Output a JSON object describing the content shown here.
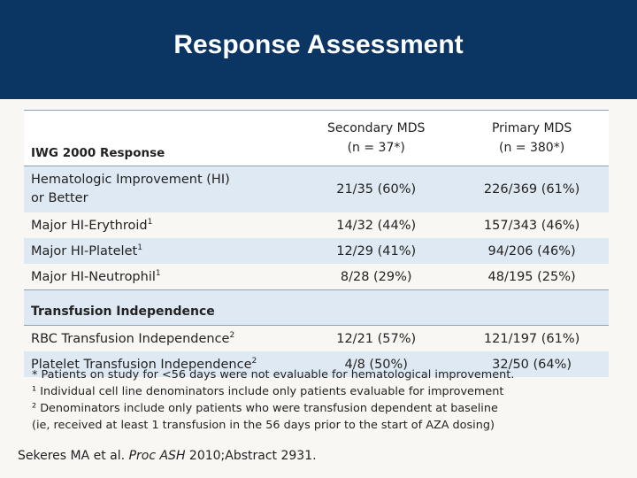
{
  "title": "Response Assessment",
  "table": {
    "col_label": "IWG 2000 Response",
    "col1_line1": "Secondary MDS",
    "col1_line2": "(n = 37*)",
    "col2_line1": "Primary MDS",
    "col2_line2": "(n = 380*)",
    "rows": [
      {
        "label_line1": "Hematologic Improvement (HI)",
        "label_line2": "or Better",
        "secondary": "21/35 (60%)",
        "primary": "226/369 (61%)"
      },
      {
        "label": "Major HI-Erythroid",
        "sup": "1",
        "secondary": "14/32 (44%)",
        "primary": "157/343 (46%)"
      },
      {
        "label": "Major HI-Platelet",
        "sup": "1",
        "secondary": "12/29 (41%)",
        "primary": "94/206 (46%)"
      },
      {
        "label": "Major HI-Neutrophil",
        "sup": "1",
        "secondary": "8/28 (29%)",
        "primary": "48/195 (25%)"
      }
    ],
    "section_label": "Transfusion Independence",
    "ti_rows": [
      {
        "label": "RBC Transfusion Independence",
        "sup": "2",
        "secondary": "12/21 (57%)",
        "primary": "121/197 (61%)"
      },
      {
        "label": "Platelet Transfusion Independence",
        "sup": "2",
        "secondary": "4/8 (50%)",
        "primary": "32/50 (64%)"
      }
    ]
  },
  "footnotes": {
    "f1": "* Patients on study for <56 days were not evaluable for hematological improvement.",
    "f2": "¹ Individual cell line denominators include only patients evaluable for improvement",
    "f3": "² Denominators include only patients who were transfusion dependent at baseline",
    "f4": "(ie, received at least 1 transfusion in the 56 days prior to the start of AZA dosing)"
  },
  "citation": {
    "authors": "Sekeres MA et al.",
    "journal": "Proc ASH",
    "rest": "2010;Abstract 2931."
  }
}
